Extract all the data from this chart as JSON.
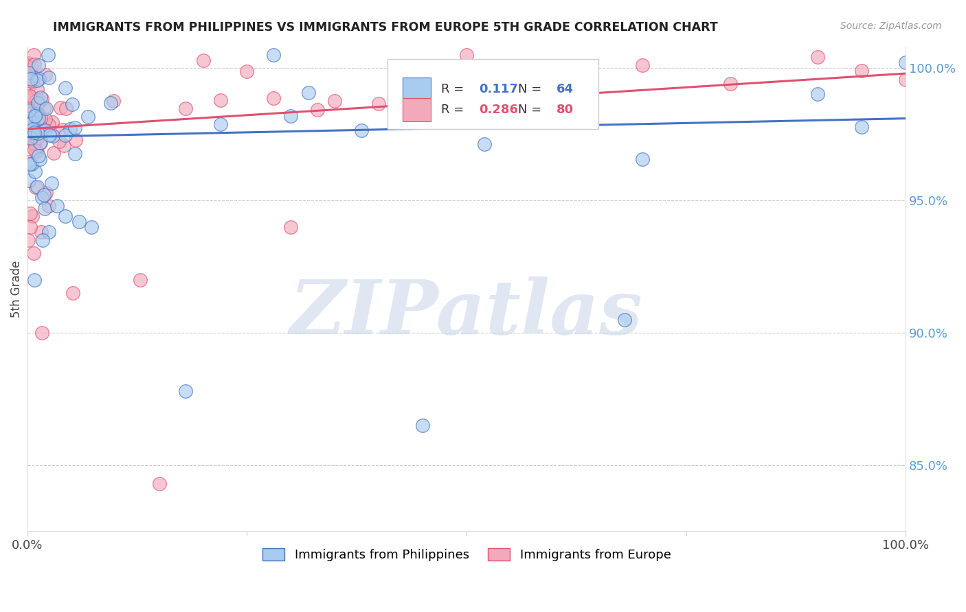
{
  "title": "IMMIGRANTS FROM PHILIPPINES VS IMMIGRANTS FROM EUROPE 5TH GRADE CORRELATION CHART",
  "source": "Source: ZipAtlas.com",
  "ylabel_left": "5th Grade",
  "legend_blue_label": "Immigrants from Philippines",
  "legend_pink_label": "Immigrants from Europe",
  "R_blue": 0.117,
  "N_blue": 64,
  "R_pink": 0.286,
  "N_pink": 80,
  "xlim": [
    0,
    1.0
  ],
  "ylim": [
    0.825,
    1.008
  ],
  "right_yticks": [
    0.85,
    0.9,
    0.95,
    1.0
  ],
  "right_yticklabels": [
    "85.0%",
    "90.0%",
    "95.0%",
    "100.0%"
  ],
  "xticks": [
    0,
    0.25,
    0.5,
    0.75,
    1.0
  ],
  "xticklabels": [
    "0.0%",
    "",
    "",
    "",
    "100.0%"
  ],
  "color_blue": "#A8CCEE",
  "color_pink": "#F2AABB",
  "line_color_blue": "#4472C4",
  "line_color_pink": "#E05070",
  "watermark_color": "#C8D4E8",
  "watermark_text": "ZIPatlas",
  "blue_line_x0": 0.0,
  "blue_line_y0": 0.974,
  "blue_line_x1": 1.0,
  "blue_line_y1": 0.981,
  "pink_line_x0": 0.0,
  "pink_line_y0": 0.977,
  "pink_line_x1": 1.0,
  "pink_line_y1": 0.998
}
